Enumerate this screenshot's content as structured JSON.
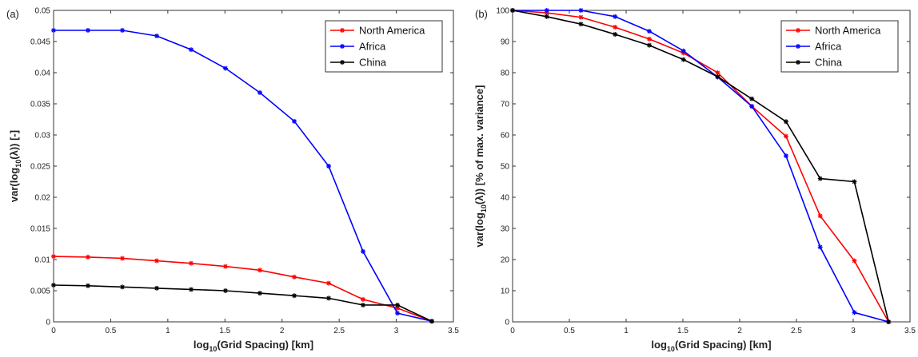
{
  "chart_data": [
    {
      "type": "line",
      "panel_label": "(a)",
      "xlabel_main": "log",
      "xlabel_sub": "10",
      "xlabel_rest": "(Grid Spacing) [km]",
      "ylabel_pre": "var(log",
      "ylabel_sub": "10",
      "ylabel_post": "(λ)) [-]",
      "xlim": [
        0,
        3.5
      ],
      "ylim": [
        0,
        0.05
      ],
      "xticks": [
        "0",
        "0.5",
        "1",
        "1.5",
        "2",
        "2.5",
        "3",
        "3.5"
      ],
      "yticks": [
        "0",
        "0.005",
        "0.01",
        "0.015",
        "0.02",
        "0.025",
        "0.03",
        "0.035",
        "0.04",
        "0.045",
        "0.05"
      ],
      "legend_position": "top-right",
      "x": [
        0,
        0.301,
        0.602,
        0.903,
        1.204,
        1.505,
        1.806,
        2.107,
        2.408,
        2.709,
        3.01,
        3.311
      ],
      "series": [
        {
          "name": "North America",
          "color": "#ff0000",
          "values": [
            0.0105,
            0.0104,
            0.0102,
            0.0098,
            0.0094,
            0.0089,
            0.0083,
            0.0072,
            0.0062,
            0.0036,
            0.0022,
            0.0001
          ]
        },
        {
          "name": "Africa",
          "color": "#0000ff",
          "values": [
            0.0468,
            0.0468,
            0.0468,
            0.0459,
            0.0437,
            0.0407,
            0.0368,
            0.0322,
            0.025,
            0.0113,
            0.0014,
            0.0001
          ]
        },
        {
          "name": "China",
          "color": "#000000",
          "values": [
            0.0059,
            0.0058,
            0.0056,
            0.0054,
            0.0052,
            0.005,
            0.0046,
            0.0042,
            0.0038,
            0.0027,
            0.0027,
            0.0001
          ]
        }
      ]
    },
    {
      "type": "line",
      "panel_label": "(b)",
      "xlabel_main": "log",
      "xlabel_sub": "10",
      "xlabel_rest": "(Grid Spacing) [km]",
      "ylabel_pre": "var(log",
      "ylabel_sub": "10",
      "ylabel_post": "(λ)) [% of max. variance]",
      "xlim": [
        0,
        3.5
      ],
      "ylim": [
        0,
        100
      ],
      "xticks": [
        "0",
        "0.5",
        "1",
        "1.5",
        "2",
        "2.5",
        "3",
        "3.5"
      ],
      "yticks": [
        "0",
        "10",
        "20",
        "30",
        "40",
        "50",
        "60",
        "70",
        "80",
        "90",
        "100"
      ],
      "legend_position": "top-right",
      "x": [
        0,
        0.301,
        0.602,
        0.903,
        1.204,
        1.505,
        1.806,
        2.107,
        2.408,
        2.709,
        3.01,
        3.311
      ],
      "series": [
        {
          "name": "North America",
          "color": "#ff0000",
          "values": [
            100,
            99.2,
            97.8,
            94.6,
            90.8,
            86.3,
            80,
            69.2,
            59.6,
            34,
            19.6,
            0
          ]
        },
        {
          "name": "Africa",
          "color": "#0000ff",
          "values": [
            100,
            100,
            100,
            98,
            93.3,
            87,
            78.6,
            69.2,
            53.3,
            24,
            3,
            0
          ]
        },
        {
          "name": "China",
          "color": "#000000",
          "values": [
            100,
            98,
            95.6,
            92.3,
            88.8,
            84.2,
            78.7,
            71.6,
            64.3,
            46,
            45,
            0
          ]
        }
      ]
    }
  ]
}
